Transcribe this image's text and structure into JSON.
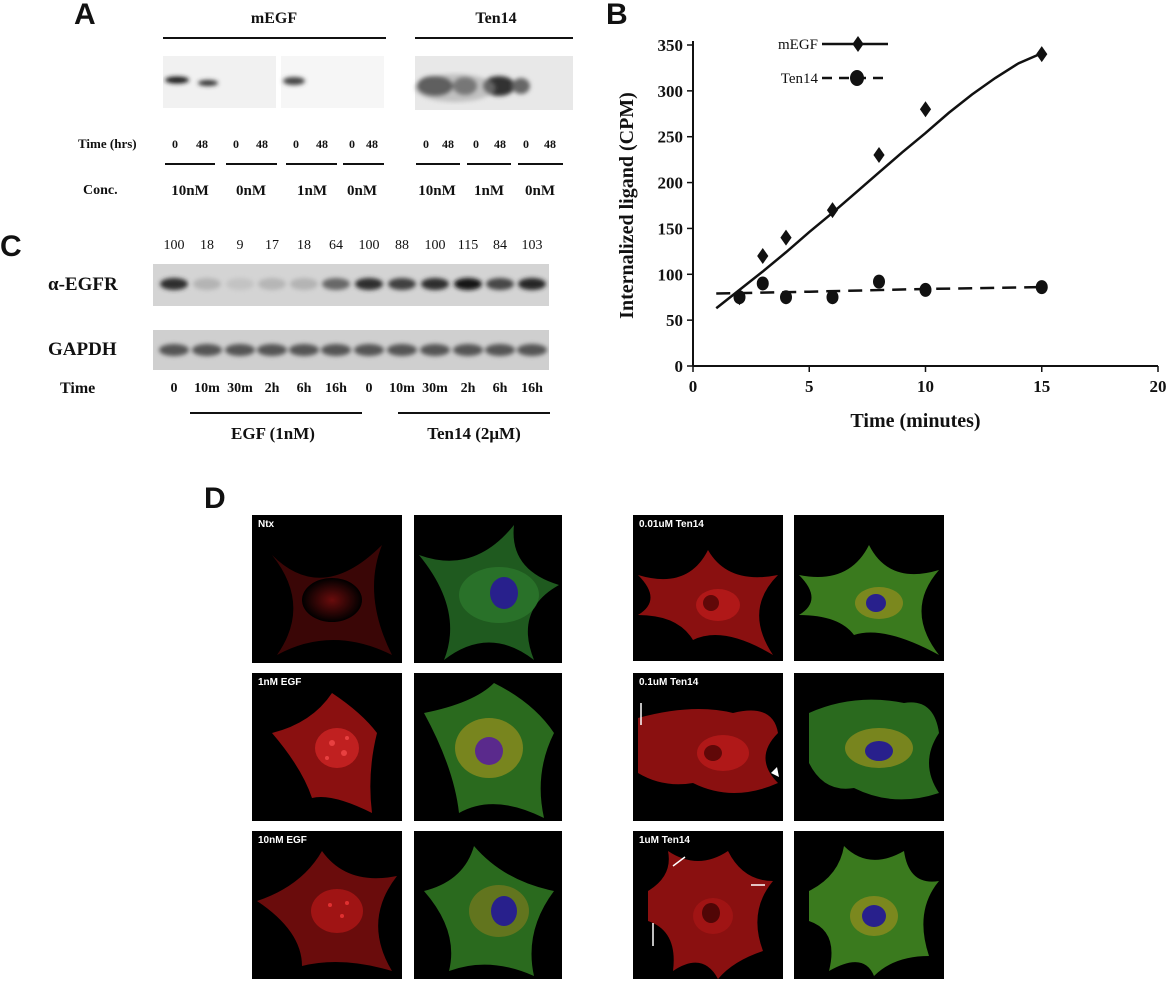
{
  "panels": {
    "a": {
      "letter": "A",
      "group1": "mEGF",
      "group2": "Ten14",
      "time_label": "Time (hrs)",
      "conc_label": "Conc.",
      "lanes": [
        "0",
        "48",
        "0",
        "48",
        "0",
        "48",
        "0",
        "48",
        "0",
        "48",
        "0",
        "48",
        "0",
        "48"
      ],
      "conc": [
        "10nM",
        "0nM",
        "1nM",
        "0nM",
        "10nM",
        "1nM",
        "0nM"
      ]
    },
    "b": {
      "letter": "B"
    },
    "c": {
      "letter": "C",
      "row1": "α-EGFR",
      "row2": "GAPDH",
      "time_label": "Time",
      "values": [
        "100",
        "18",
        "9",
        "17",
        "18",
        "64",
        "100",
        "88",
        "100",
        "115",
        "84",
        "103"
      ],
      "times": [
        "0",
        "10m",
        "30m",
        "2h",
        "6h",
        "16h",
        "0",
        "10m",
        "30m",
        "2h",
        "6h",
        "16h"
      ],
      "group1": "EGF (1nM)",
      "group2": "Ten14 (2μM)"
    },
    "d": {
      "letter": "D",
      "labels": [
        "Ntx",
        "1nM EGF",
        "10nM EGF",
        "0.01uM Ten14",
        "0.1uM Ten14",
        "1uM Ten14"
      ]
    }
  },
  "chart_data": {
    "type": "line",
    "xlabel": "Time (minutes)",
    "ylabel": "Internalized ligand (CPM)",
    "xlim": [
      0,
      20
    ],
    "ylim": [
      0,
      350
    ],
    "xticks": [
      0,
      5,
      10,
      15,
      20
    ],
    "yticks": [
      0,
      50,
      100,
      150,
      200,
      250,
      300,
      350
    ],
    "legend_position": "top",
    "series": [
      {
        "name": "mEGF",
        "marker": "diamond",
        "line": "solid",
        "x": [
          2,
          3,
          4,
          6,
          8,
          10,
          15
        ],
        "y": [
          75,
          120,
          140,
          170,
          230,
          280,
          340
        ],
        "fit_x": [
          1,
          2,
          3,
          4,
          5,
          6,
          7,
          8,
          9,
          10,
          11,
          12,
          13,
          14,
          15
        ],
        "fit_y": [
          63,
          83,
          103,
          124,
          146,
          167,
          189,
          211,
          233,
          254,
          276,
          296,
          314,
          330,
          341
        ]
      },
      {
        "name": "Ten14",
        "marker": "circle",
        "line": "dashed",
        "x": [
          2,
          3,
          4,
          6,
          8,
          10,
          15
        ],
        "y": [
          75,
          90,
          75,
          75,
          92,
          83,
          86
        ],
        "fit_x": [
          1,
          5,
          10,
          15
        ],
        "fit_y": [
          79,
          81,
          84,
          86
        ]
      }
    ],
    "colors": {
      "ink": "#111111"
    }
  }
}
